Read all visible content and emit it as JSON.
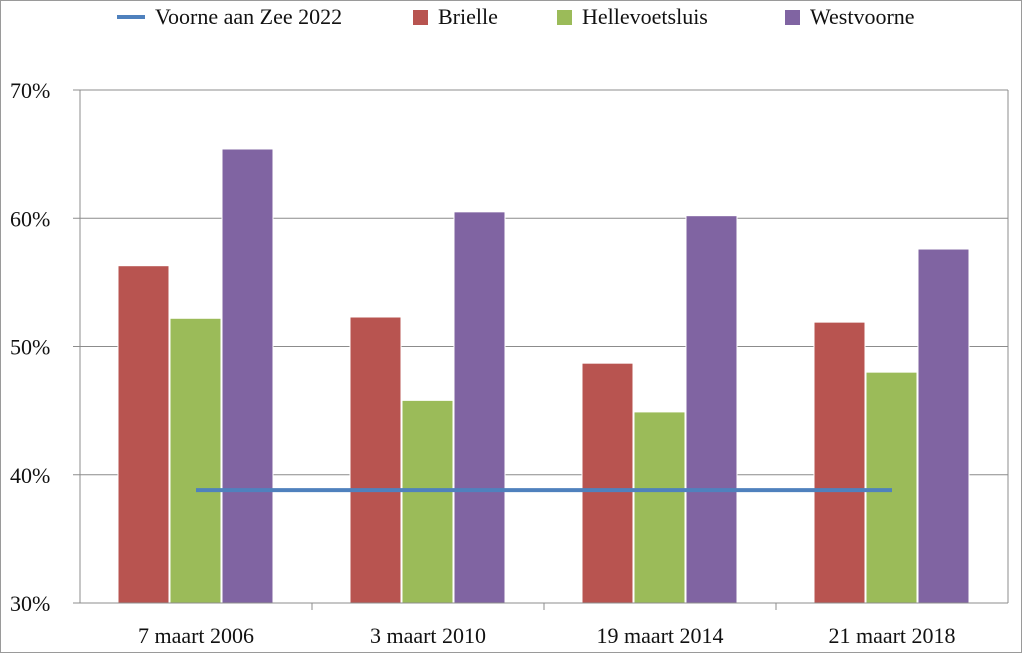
{
  "chart_data": {
    "type": "bar",
    "categories": [
      "7 maart 2006",
      "3 maart 2010",
      "19 maart 2014",
      "21 maart 2018"
    ],
    "series": [
      {
        "name": "Brielle",
        "values": [
          56.3,
          52.3,
          48.7,
          51.9
        ],
        "color": "#b85450"
      },
      {
        "name": "Hellevoetsluis",
        "values": [
          52.2,
          45.8,
          44.9,
          48.0
        ],
        "color": "#9bbb59"
      },
      {
        "name": "Westvoorne",
        "values": [
          65.4,
          60.5,
          60.2,
          57.6
        ],
        "color": "#8064a2"
      }
    ],
    "reference_line": {
      "name": "Voorne aan Zee 2022",
      "value": 38.8,
      "color": "#4f81bd"
    },
    "y_ticks": [
      "30%",
      "40%",
      "50%",
      "60%",
      "70%"
    ],
    "ylim": [
      30,
      70
    ],
    "unit": "%",
    "grid": true,
    "legend_position": "top",
    "title": "",
    "xlabel": "",
    "ylabel": ""
  }
}
